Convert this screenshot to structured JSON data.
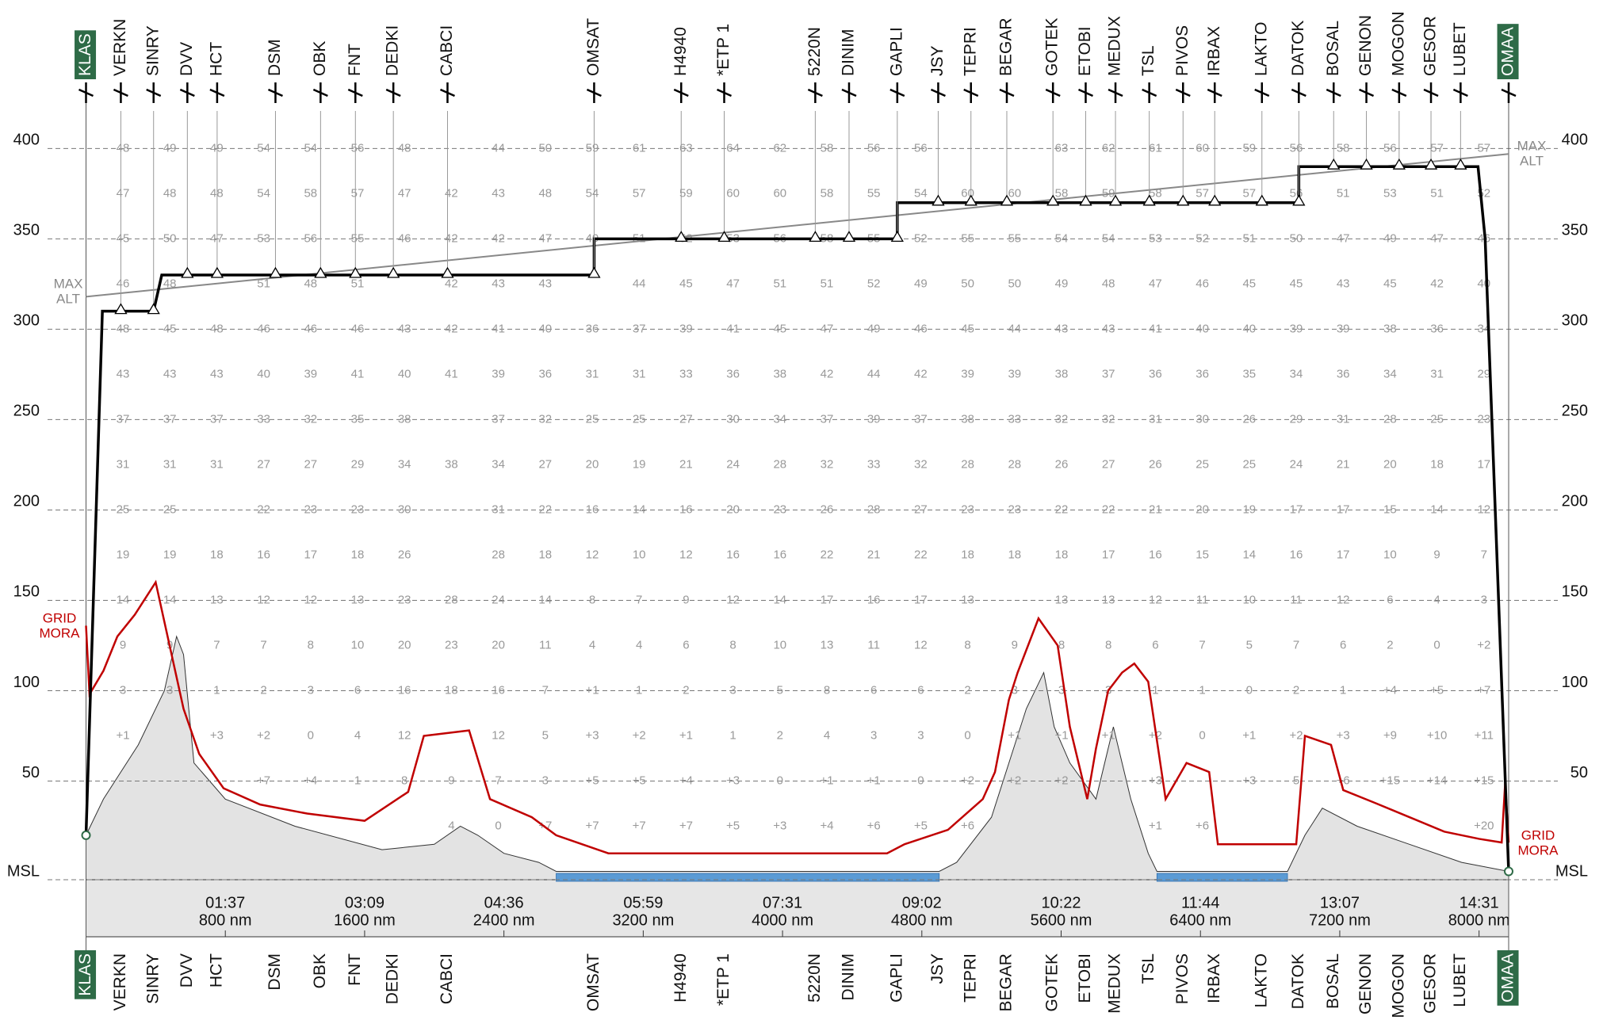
{
  "chart_data": {
    "type": "flight-profile",
    "waypoints": [
      "KLAS",
      "VERKN",
      "SINRY",
      "DVV",
      "HCT",
      "DSM",
      "OBK",
      "FNT",
      "DEDKI",
      "CABCI",
      "OMSAT",
      "H4940",
      "*ETP 1",
      "5220N",
      "DINIM",
      "GAPLI",
      "JSY",
      "TEPRI",
      "BEGAR",
      "GOTEK",
      "ETOBI",
      "MEDUX",
      "TSL",
      "PIVOS",
      "IRBAX",
      "LAKTO",
      "DATOK",
      "BOSAL",
      "GENON",
      "MOGON",
      "GESOR",
      "LUBET",
      "OMAA"
    ],
    "waypoint_distances_nm": [
      0,
      200,
      388,
      582,
      753,
      1088,
      1347,
      1547,
      1765,
      2076,
      2918,
      3418,
      3665,
      4188,
      4382,
      4659,
      4894,
      5082,
      5288,
      5553,
      5741,
      5912,
      6106,
      6300,
      6482,
      6753,
      6965,
      7165,
      7353,
      7541,
      7724,
      7894,
      8170
    ],
    "xlim": [
      0,
      8170
    ],
    "xticks": [
      {
        "value": 800,
        "label": "800 nm"
      },
      {
        "value": 1600,
        "label": "1600 nm"
      },
      {
        "value": 2400,
        "label": "2400 nm"
      },
      {
        "value": 3200,
        "label": "3200 nm"
      },
      {
        "value": 4000,
        "label": "4000 nm"
      },
      {
        "value": 4800,
        "label": "4800 nm"
      },
      {
        "value": 5600,
        "label": "5600 nm"
      },
      {
        "value": 6400,
        "label": "6400 nm"
      },
      {
        "value": 7200,
        "label": "7200 nm"
      },
      {
        "value": 8000,
        "label": "8000 nm"
      }
    ],
    "time_labels": [
      "01:37",
      "03:09",
      "04:36",
      "05:59",
      "07:31",
      "09:02",
      "10:22",
      "11:44",
      "13:07",
      "14:31"
    ],
    "ylim": [
      0,
      421
    ],
    "yticks": [
      {
        "value": 0,
        "label": "MSL"
      },
      50,
      100,
      150,
      200,
      250,
      300,
      350,
      400
    ],
    "profile": {
      "color": "#000000",
      "x": [
        0,
        94,
        388,
        435,
        2918,
        2918,
        4659,
        4659,
        6965,
        6965,
        7994,
        8035,
        8170
      ],
      "values": [
        20,
        310,
        310,
        330,
        330,
        350,
        350,
        370,
        370,
        390,
        390,
        350,
        0
      ]
    },
    "max_alt": {
      "label": [
        "MAX",
        "ALT"
      ],
      "color": "#888888",
      "x": [
        0,
        8170
      ],
      "values": [
        318,
        397
      ]
    },
    "grid_mora": {
      "label": [
        "GRID",
        "MORA"
      ],
      "color": "#c00000",
      "x": [
        0,
        20,
        100,
        180,
        280,
        400,
        560,
        650,
        790,
        1000,
        1270,
        1600,
        1850,
        1940,
        2200,
        2320,
        2560,
        2700,
        2850,
        3000,
        4600,
        4700,
        4950,
        5150,
        5220,
        5300,
        5350,
        5470,
        5580,
        5650,
        5750,
        5800,
        5870,
        5950,
        6020,
        6100,
        6200,
        6320,
        6450,
        6500,
        6950,
        7000,
        7150,
        7220,
        7400,
        7600,
        7800,
        8000,
        8130,
        8150,
        8170
      ],
      "values": [
        136,
        98,
        111,
        130,
        142,
        160,
        90,
        65,
        46,
        37,
        32,
        28,
        44,
        75,
        78,
        40,
        30,
        20,
        15,
        10,
        10,
        15,
        23,
        40,
        55,
        95,
        110,
        140,
        125,
        80,
        40,
        68,
        100,
        110,
        115,
        105,
        40,
        60,
        55,
        15,
        15,
        75,
        70,
        45,
        38,
        30,
        22,
        18,
        16,
        49,
        16
      ]
    },
    "terrain": {
      "color": "#e3e3e3",
      "x": [
        0,
        100,
        300,
        450,
        520,
        560,
        620,
        800,
        1200,
        1700,
        2000,
        2150,
        2250,
        2400,
        2600,
        2700,
        4900,
        5000,
        5200,
        5400,
        5500,
        5560,
        5650,
        5800,
        5900,
        6000,
        6100,
        6150,
        6900,
        7000,
        7100,
        7300,
        7600,
        7900,
        8170
      ],
      "values": [
        20,
        40,
        70,
        100,
        130,
        120,
        60,
        40,
        25,
        12,
        15,
        25,
        20,
        10,
        5,
        0,
        0,
        5,
        30,
        90,
        110,
        80,
        60,
        40,
        80,
        40,
        10,
        0,
        0,
        20,
        35,
        25,
        15,
        5,
        0
      ]
    },
    "temperatures": [
      [
        48,
        49,
        49,
        54,
        54,
        56,
        48,
        null,
        44,
        50,
        59,
        61,
        63,
        64,
        62,
        58,
        56,
        56,
        null,
        null,
        63,
        62,
        61,
        60,
        59,
        56,
        58,
        56,
        57,
        57
      ],
      [
        47,
        48,
        48,
        54,
        58,
        57,
        47,
        42,
        43,
        48,
        54,
        57,
        59,
        60,
        60,
        58,
        55,
        54,
        60,
        60,
        58,
        59,
        58,
        57,
        57,
        56,
        51,
        53,
        51,
        52
      ],
      [
        45,
        50,
        47,
        53,
        56,
        55,
        46,
        42,
        42,
        47,
        49,
        51,
        52,
        53,
        56,
        58,
        55,
        52,
        55,
        55,
        54,
        54,
        53,
        52,
        51,
        50,
        47,
        49,
        47,
        46
      ],
      [
        46,
        48,
        null,
        51,
        48,
        51,
        null,
        42,
        43,
        43,
        null,
        44,
        45,
        47,
        51,
        51,
        52,
        49,
        50,
        50,
        49,
        48,
        47,
        46,
        45,
        45,
        43,
        45,
        42,
        40
      ],
      [
        48,
        45,
        48,
        46,
        46,
        46,
        43,
        42,
        41,
        40,
        36,
        37,
        39,
        41,
        45,
        47,
        49,
        46,
        45,
        44,
        43,
        43,
        41,
        40,
        40,
        39,
        39,
        38,
        36,
        34
      ],
      [
        43,
        43,
        43,
        40,
        39,
        41,
        40,
        41,
        39,
        36,
        31,
        31,
        33,
        36,
        38,
        42,
        44,
        42,
        39,
        39,
        38,
        37,
        36,
        36,
        35,
        34,
        36,
        34,
        31,
        29
      ],
      [
        37,
        37,
        37,
        33,
        32,
        35,
        38,
        null,
        37,
        32,
        25,
        25,
        27,
        30,
        34,
        37,
        39,
        37,
        38,
        33,
        32,
        32,
        31,
        30,
        26,
        29,
        31,
        28,
        25,
        23
      ],
      [
        31,
        31,
        31,
        27,
        27,
        29,
        34,
        38,
        34,
        27,
        20,
        19,
        21,
        24,
        28,
        32,
        33,
        32,
        28,
        28,
        26,
        27,
        26,
        25,
        25,
        24,
        21,
        20,
        18,
        17
      ],
      [
        25,
        25,
        null,
        22,
        23,
        23,
        30,
        null,
        31,
        22,
        16,
        14,
        16,
        20,
        23,
        26,
        28,
        27,
        23,
        23,
        22,
        22,
        21,
        20,
        19,
        17,
        17,
        15,
        14,
        12
      ],
      [
        19,
        19,
        18,
        16,
        17,
        18,
        26,
        null,
        28,
        18,
        12,
        10,
        12,
        16,
        16,
        22,
        21,
        22,
        18,
        18,
        18,
        17,
        16,
        15,
        14,
        16,
        17,
        10,
        9,
        7
      ],
      [
        14,
        14,
        13,
        12,
        12,
        13,
        23,
        28,
        24,
        14,
        8,
        7,
        9,
        12,
        14,
        17,
        16,
        17,
        13,
        null,
        13,
        13,
        12,
        11,
        10,
        11,
        12,
        6,
        4,
        3
      ],
      [
        9,
        9,
        7,
        7,
        8,
        10,
        20,
        23,
        20,
        11,
        4,
        4,
        6,
        8,
        10,
        13,
        11,
        12,
        8,
        9,
        8,
        8,
        6,
        7,
        5,
        7,
        6,
        2,
        0,
        "+2"
      ],
      [
        3,
        3,
        1,
        2,
        3,
        6,
        16,
        18,
        16,
        7,
        "+1",
        1,
        2,
        3,
        5,
        8,
        6,
        6,
        2,
        3,
        3,
        3,
        1,
        1,
        0,
        2,
        1,
        "+4",
        "+5",
        "+7"
      ],
      [
        "+1",
        null,
        "+3",
        "+2",
        0,
        4,
        12,
        null,
        12,
        5,
        "+3",
        "+2",
        "+1",
        1,
        2,
        4,
        3,
        3,
        0,
        "+1",
        "+1",
        "+1",
        "+2",
        0,
        "+1",
        "+2",
        "+3",
        "+9",
        "+10",
        "+11"
      ],
      [
        null,
        null,
        null,
        "+7",
        "+4",
        1,
        8,
        9,
        7,
        3,
        "+5",
        "+5",
        "+4",
        "+3",
        0,
        "+1",
        "+1",
        0,
        "+2",
        "+2",
        "+2",
        null,
        "+3",
        null,
        "+3",
        5,
        "+6",
        "+15",
        "+14",
        "+15"
      ],
      [
        null,
        null,
        null,
        null,
        null,
        null,
        null,
        4,
        0,
        "+7",
        "+7",
        "+7",
        "+7",
        "+5",
        "+3",
        "+4",
        "+6",
        "+5",
        "+6",
        null,
        null,
        null,
        "+1",
        "+6",
        null,
        null,
        null,
        null,
        null,
        "+20"
      ]
    ]
  }
}
